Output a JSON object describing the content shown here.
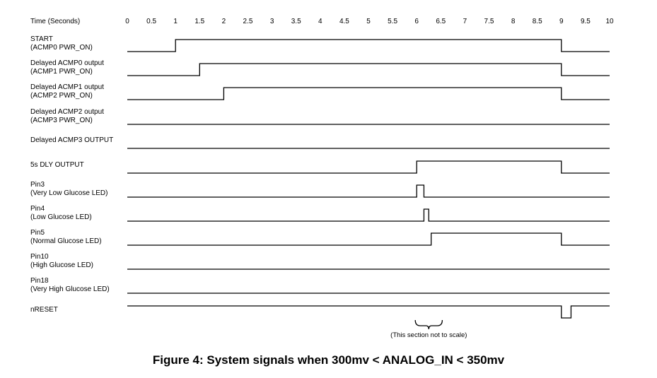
{
  "time_axis": {
    "label": "Time (Seconds)",
    "ticks": [
      "0",
      "0.5",
      "1",
      "1.5",
      "2",
      "2.5",
      "3",
      "3.5",
      "4",
      "4.5",
      "5",
      "5.5",
      "6",
      "6.5",
      "7",
      "7.5",
      "8",
      "8.5",
      "9",
      "9.5",
      "10"
    ]
  },
  "signals": [
    {
      "lines": [
        "START",
        "(ACMP0 PWR_ON)"
      ],
      "initial": 0,
      "transitions": [
        1,
        9
      ]
    },
    {
      "lines": [
        "Delayed ACMP0 output",
        "(ACMP1 PWR_ON)"
      ],
      "initial": 0,
      "transitions": [
        1.5,
        9
      ]
    },
    {
      "lines": [
        "Delayed ACMP1 output",
        "(ACMP2 PWR_ON)"
      ],
      "initial": 0,
      "transitions": [
        2,
        9
      ]
    },
    {
      "lines": [
        "Delayed ACMP2 output",
        "(ACMP3 PWR_ON)"
      ],
      "initial": 0,
      "transitions": []
    },
    {
      "lines": [
        "Delayed ACMP3 OUTPUT"
      ],
      "initial": 0,
      "transitions": []
    },
    {
      "lines": [
        "5s DLY OUTPUT"
      ],
      "initial": 0,
      "transitions": [
        6,
        9
      ]
    },
    {
      "lines": [
        "Pin3",
        "(Very Low Glucose LED)"
      ],
      "initial": 0,
      "transitions": [
        6,
        6.15
      ]
    },
    {
      "lines": [
        "Pin4",
        "(Low Glucose LED)"
      ],
      "initial": 0,
      "transitions": [
        6.15,
        6.25
      ]
    },
    {
      "lines": [
        "Pin5",
        "(Normal Glucose LED)"
      ],
      "initial": 0,
      "transitions": [
        6.3,
        9
      ]
    },
    {
      "lines": [
        "Pin10",
        "(High Glucose LED)"
      ],
      "initial": 0,
      "transitions": []
    },
    {
      "lines": [
        "Pin18",
        "(Very High Glucose LED)"
      ],
      "initial": 0,
      "transitions": []
    },
    {
      "lines": [
        "nRESET"
      ],
      "initial": 1,
      "transitions": [
        9,
        9.2
      ]
    }
  ],
  "scale_note": {
    "text": "(This section not to scale)",
    "from": 6,
    "to": 7
  },
  "caption": "Figure 4: System signals when 300mv < ANALOG_IN < 350mv"
}
